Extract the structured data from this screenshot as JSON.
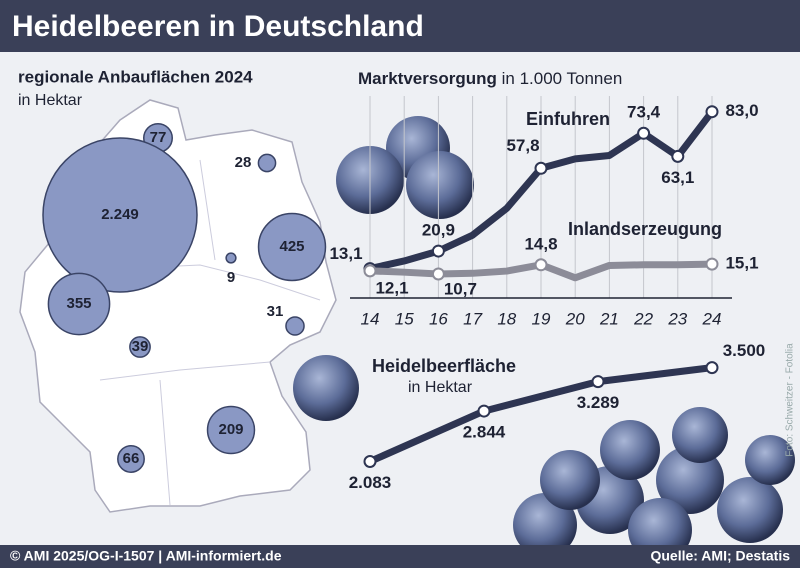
{
  "title": "Heidelbeeren in Deutschland",
  "footer": {
    "copyright": "© AMI 2025/OG-I-1507 | AMI-informiert.de",
    "source": "Quelle: AMI; Destatis"
  },
  "photo_credit": "Foto: Schweitzer - Fotolia",
  "chart_data": [
    {
      "type": "bubble",
      "title": "regionale Anbauflächen 2024",
      "subtitle": "in Hektar",
      "values": [
        77,
        28,
        2249,
        425,
        9,
        355,
        31,
        39,
        209,
        66
      ],
      "value_labels": [
        "77",
        "28",
        "2.249",
        "425",
        "9",
        "355",
        "31",
        "39",
        "209",
        "66"
      ],
      "color": "#8a98c4"
    },
    {
      "type": "line",
      "title": "Marktversorgung",
      "subtitle": "in 1.000 Tonnen",
      "categories": [
        "14",
        "15",
        "16",
        "17",
        "18",
        "19",
        "20",
        "21",
        "22",
        "23",
        "24"
      ],
      "ylim": [
        0,
        90
      ],
      "series": [
        {
          "name": "Einfuhren",
          "color": "#2e3552",
          "values": [
            13.1,
            16.5,
            20.9,
            28,
            40,
            57.8,
            62,
            63.5,
            73.4,
            63.1,
            83.0
          ],
          "value_labels": [
            "13,1",
            null,
            "20,9",
            null,
            null,
            "57,8",
            null,
            null,
            "73,4",
            "63,1",
            "83,0"
          ]
        },
        {
          "name": "Inlandserzeugung",
          "color": "#8c8c98",
          "values": [
            12.1,
            11.5,
            10.7,
            11,
            12,
            14.8,
            9,
            14.5,
            14.8,
            14.8,
            15.1
          ],
          "value_labels": [
            "12,1",
            null,
            "10,7",
            null,
            null,
            "14,8",
            null,
            null,
            null,
            null,
            "15,1"
          ]
        }
      ]
    },
    {
      "type": "line",
      "title": "Heidelbeerfläche",
      "subtitle": "in Hektar",
      "categories": [
        null,
        null,
        null,
        null
      ],
      "ylim": [
        2000,
        3600
      ],
      "color": "#2e3552",
      "values": [
        2083,
        2844,
        3289,
        3500
      ],
      "value_labels": [
        "2.083",
        "2.844",
        "3.289",
        "3.500"
      ]
    }
  ]
}
